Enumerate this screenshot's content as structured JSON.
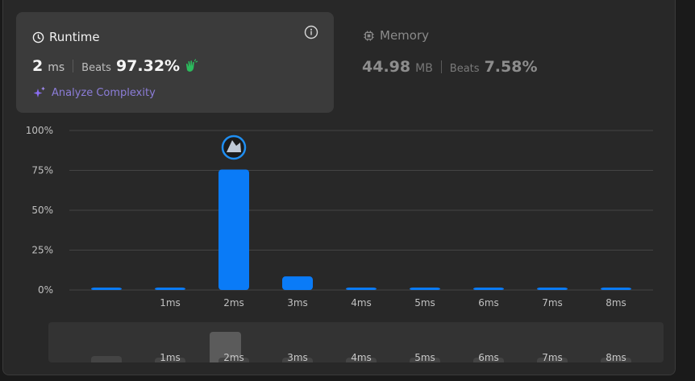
{
  "runtime": {
    "title": "Runtime",
    "value": "2",
    "unit": "ms",
    "beats_label": "Beats",
    "beats_value": "97.32%",
    "analyze_label": "Analyze Complexity"
  },
  "memory": {
    "title": "Memory",
    "value": "44.98",
    "unit": "MB",
    "beats_label": "Beats",
    "beats_value": "7.58%"
  },
  "colors": {
    "bar": "#0a7bf7",
    "accent_purple": "#8a6df2",
    "clap": "#2cbb5d"
  },
  "icons": [
    "clock-icon",
    "info-icon",
    "clap-icon",
    "sparkle-icon",
    "chip-icon",
    "avatar"
  ],
  "chart_data": {
    "type": "bar",
    "categories": [
      "",
      "1ms",
      "2ms",
      "3ms",
      "4ms",
      "5ms",
      "6ms",
      "7ms",
      "8ms"
    ],
    "values": [
      1.5,
      1.5,
      75.5,
      8.5,
      1.5,
      1.5,
      1.5,
      1.5,
      1.5
    ],
    "yticks": [
      "0%",
      "25%",
      "50%",
      "75%",
      "100%"
    ],
    "ylim": [
      0,
      100
    ],
    "highlight_category": "2ms"
  },
  "overview": {
    "labels": [
      "",
      "1ms",
      "2ms",
      "3ms",
      "4ms",
      "5ms",
      "6ms",
      "7ms",
      "8ms"
    ]
  }
}
